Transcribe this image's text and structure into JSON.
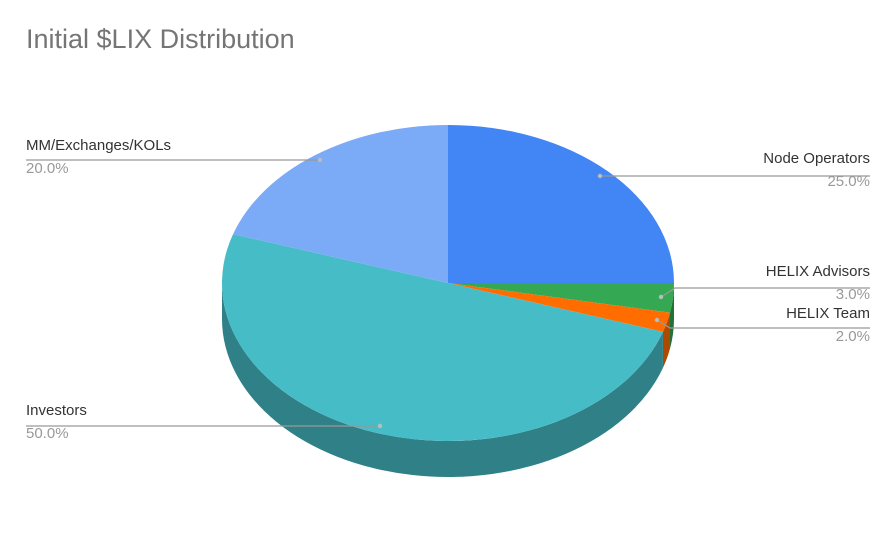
{
  "chart_data": {
    "type": "pie3d",
    "title": "Initial $LIX Distribution",
    "categories": [
      "Node Operators",
      "HELIX Advisors",
      "HELIX Team",
      "Investors",
      "MM/Exchanges/KOLs"
    ],
    "values": [
      25,
      3,
      2,
      50,
      20
    ],
    "value_labels": [
      "25.0%",
      "3.0%",
      "2.0%",
      "50.0%",
      "20.0%"
    ],
    "colors": [
      "#4285f4",
      "#34a853",
      "#ff6d01",
      "#46bdc6",
      "#7baaf7"
    ]
  }
}
